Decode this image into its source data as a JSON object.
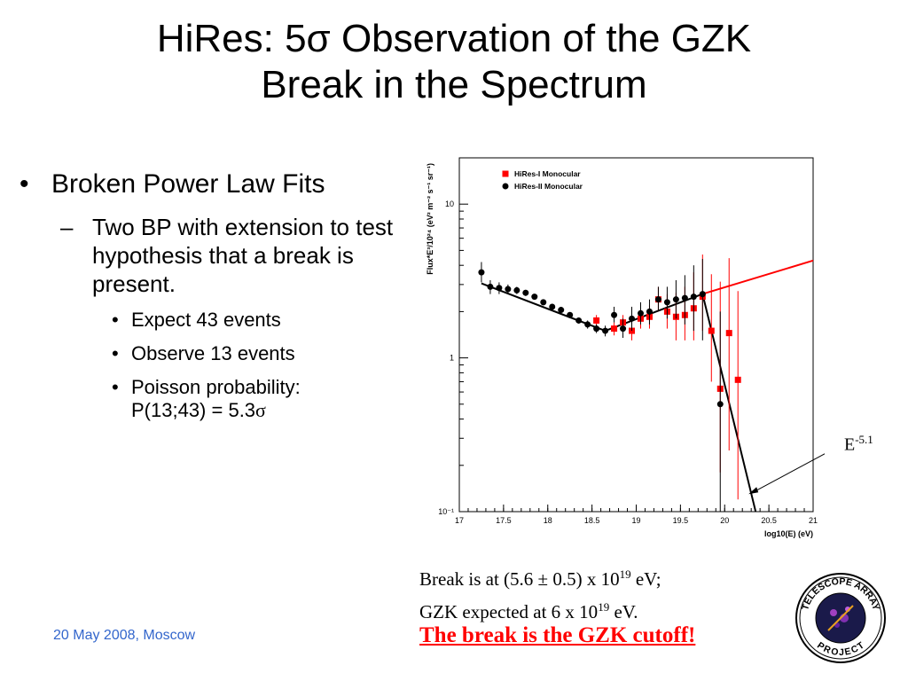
{
  "slide": {
    "title_line1": "HiRes: 5σ Observation of the GZK",
    "title_line2": "Break in the Spectrum",
    "bullet_main": "Broken Power Law Fits",
    "bullet_sub": "Two BP with extension to test hypothesis that a break is present.",
    "bullet_items": [
      "Expect 43 events",
      "Observe 13 events",
      "Poisson probability:"
    ],
    "poisson_formula": "P(13;43) = 5.3",
    "sigma_symbol": "σ",
    "break_line1_prefix": "Break is at (5.6 ± 0.5) x 10",
    "break_line1_exp": "19",
    "break_line1_suffix": " eV;",
    "break_line2_prefix": "GZK expected at 6 x 10",
    "break_line2_exp": "19",
    "break_line2_suffix": " eV.",
    "cutoff": "The break is the GZK cutoff!",
    "footer": "20 May 2008, Moscow",
    "e_label_base": "E",
    "e_label_exp": "-5.1",
    "logo_top": "TELESCOPE ARRAY",
    "logo_bottom": "PROJECT"
  },
  "chart_data": {
    "type": "scatter",
    "xlabel": "log10(E) (eV)",
    "ylabel": "Flux*E³/10²⁴ (eV² m⁻² s⁻¹ sr⁻¹)",
    "xlim": [
      17,
      21
    ],
    "ylim": [
      0.1,
      20
    ],
    "yscale": "log",
    "xticks": [
      "17",
      "17.5",
      "18",
      "18.5",
      "19",
      "19.5",
      "20",
      "20.5",
      "21"
    ],
    "yticks": [
      {
        "value": 10,
        "label": "10"
      },
      {
        "value": 1,
        "label": "1"
      },
      {
        "value": 0.1,
        "label": "10⁻¹"
      }
    ],
    "legend_position": "top-left",
    "series": [
      {
        "name": "HiRes-I Monocular",
        "marker": "square",
        "color": "#ff0000",
        "x": [
          18.55,
          18.75,
          18.85,
          18.95,
          19.05,
          19.15,
          19.25,
          19.35,
          19.45,
          19.55,
          19.65,
          19.75,
          19.85,
          19.95,
          20.05,
          20.15
        ],
        "y": [
          1.75,
          1.55,
          1.7,
          1.5,
          1.8,
          1.85,
          2.4,
          2.0,
          1.85,
          1.9,
          2.1,
          2.5,
          1.5,
          0.63,
          1.45,
          0.72
        ],
        "err_low": [
          0.15,
          0.15,
          0.2,
          0.2,
          0.25,
          0.3,
          0.4,
          0.45,
          0.55,
          0.6,
          0.8,
          1.0,
          0.8,
          0.45,
          1.2,
          0.6
        ],
        "err_high": [
          0.15,
          0.15,
          0.2,
          0.25,
          0.3,
          0.35,
          0.5,
          0.6,
          0.8,
          1.0,
          1.5,
          2.2,
          2.0,
          2.5,
          3.0,
          2.0
        ]
      },
      {
        "name": "HiRes-II Monocular",
        "marker": "circle",
        "color": "#000000",
        "x": [
          17.25,
          17.35,
          17.45,
          17.55,
          17.65,
          17.75,
          17.85,
          17.95,
          18.05,
          18.15,
          18.25,
          18.35,
          18.45,
          18.55,
          18.65,
          18.75,
          18.85,
          18.95,
          19.05,
          19.15,
          19.25,
          19.35,
          19.45,
          19.55,
          19.65,
          19.75,
          19.95
        ],
        "y": [
          3.6,
          2.9,
          2.85,
          2.8,
          2.75,
          2.65,
          2.5,
          2.3,
          2.15,
          2.05,
          1.9,
          1.75,
          1.65,
          1.55,
          1.5,
          1.9,
          1.55,
          1.8,
          1.95,
          2.0,
          2.4,
          2.3,
          2.4,
          2.45,
          2.5,
          2.6,
          0.5
        ],
        "err_low": [
          0.5,
          0.3,
          0.25,
          0.2,
          0.15,
          0.12,
          0.1,
          0.1,
          0.08,
          0.08,
          0.08,
          0.08,
          0.1,
          0.1,
          0.12,
          0.2,
          0.2,
          0.3,
          0.3,
          0.35,
          0.4,
          0.5,
          0.6,
          0.8,
          1.0,
          1.3,
          0.45
        ],
        "err_high": [
          0.6,
          0.3,
          0.25,
          0.2,
          0.15,
          0.12,
          0.1,
          0.1,
          0.08,
          0.08,
          0.08,
          0.08,
          0.1,
          0.1,
          0.12,
          0.25,
          0.25,
          0.35,
          0.35,
          0.4,
          0.5,
          0.6,
          0.8,
          1.0,
          1.5,
          1.8,
          1.5
        ]
      }
    ],
    "fit_lines": [
      {
        "color": "#000000",
        "points": [
          [
            17.25,
            3.05
          ],
          [
            18.65,
            1.5
          ],
          [
            19.75,
            2.6
          ],
          [
            20.35,
            0.1
          ]
        ]
      },
      {
        "color": "#ff0000",
        "points": [
          [
            19.75,
            2.6
          ],
          [
            21.0,
            4.3
          ]
        ]
      }
    ]
  }
}
